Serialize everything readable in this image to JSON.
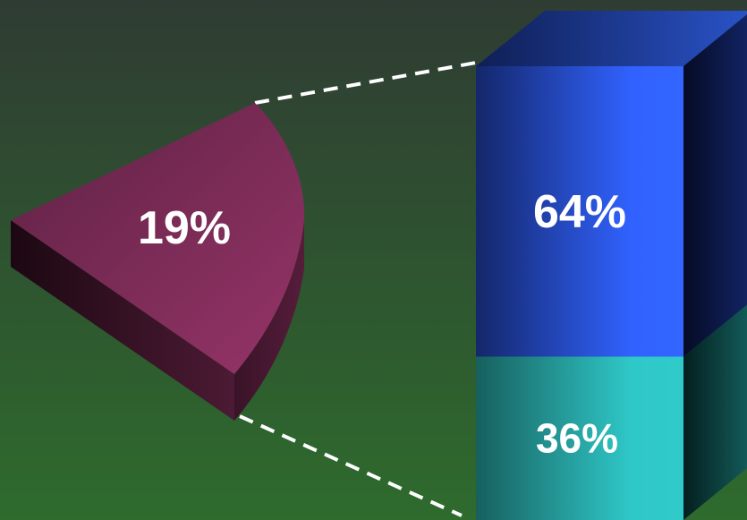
{
  "chart_data": {
    "type": "bar-of-pie",
    "title": "",
    "pie_slice": {
      "label": "19%",
      "value": 19,
      "color": "#8e2f63"
    },
    "bar_segments": [
      {
        "label": "64%",
        "value": 64,
        "color": "#3162ff"
      },
      {
        "label": "36%",
        "value": 36,
        "color": "#2fc8c8"
      }
    ],
    "connector_style": "dashed-white",
    "background": {
      "top": "#2f3e33",
      "bottom": "#2e6a2e"
    }
  }
}
